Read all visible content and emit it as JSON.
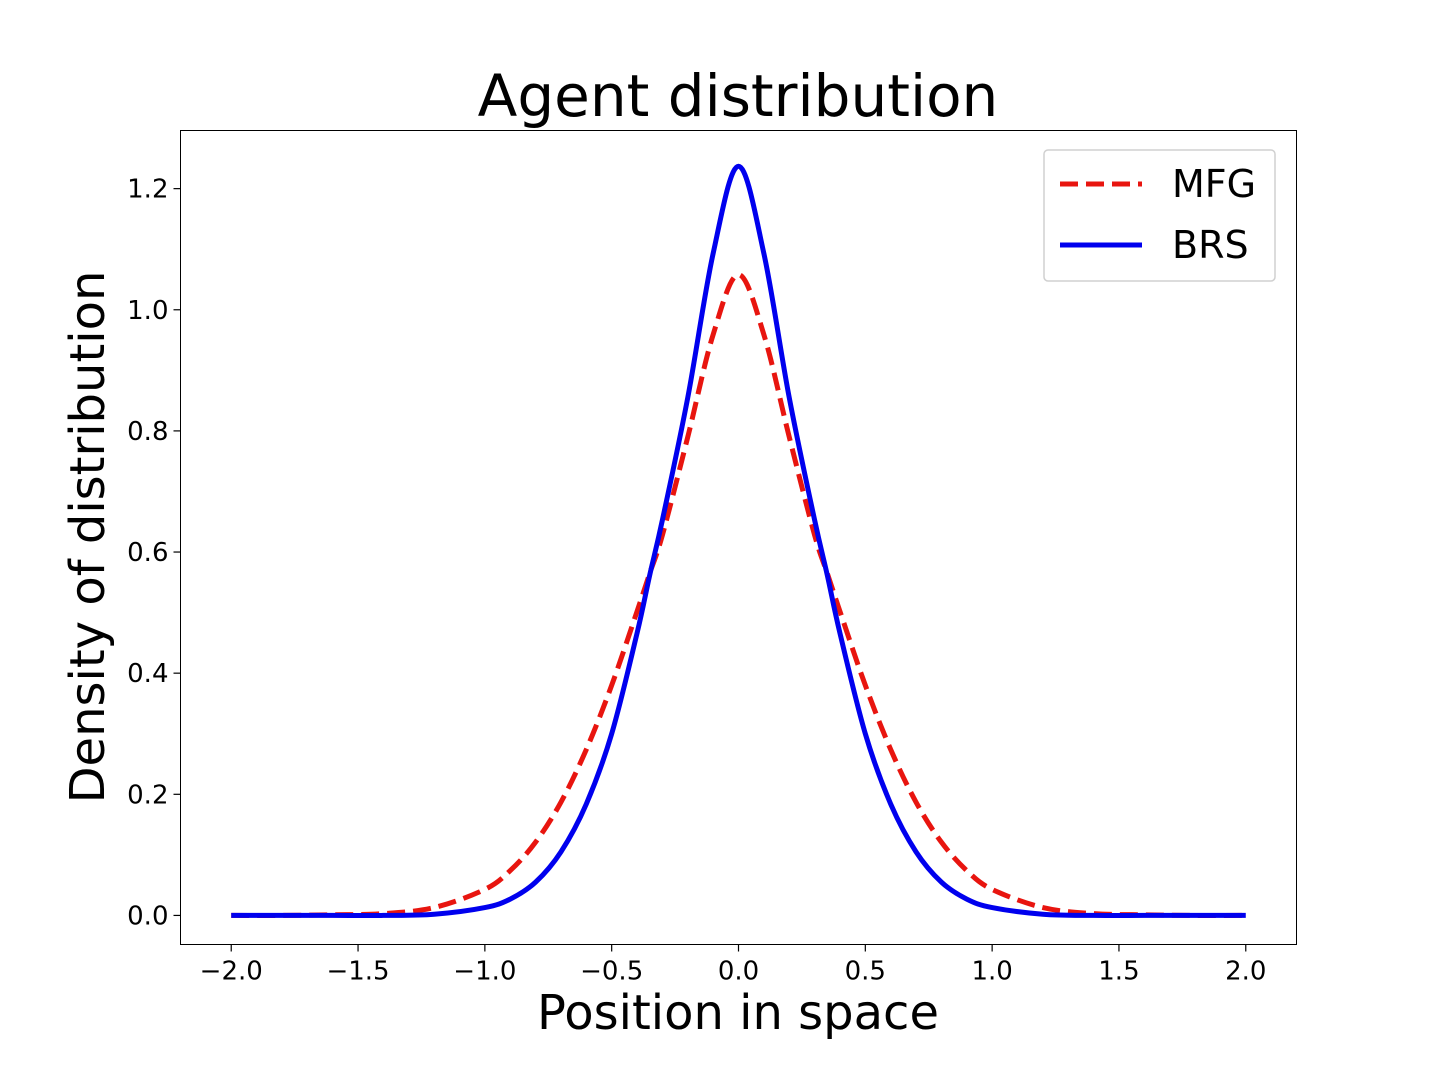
{
  "chart_data": {
    "type": "line",
    "title": "Agent distribution",
    "xlabel": "Position in space",
    "ylabel": "Density of distribution",
    "xlim": [
      -2.2,
      2.2
    ],
    "ylim": [
      -0.048,
      1.296
    ],
    "xticks": [
      -2.0,
      -1.5,
      -1.0,
      -0.5,
      0.0,
      0.5,
      1.0,
      1.5,
      2.0
    ],
    "xtick_labels": [
      "−2.0",
      "−1.5",
      "−1.0",
      "−0.5",
      "0.0",
      "0.5",
      "1.0",
      "1.5",
      "2.0"
    ],
    "yticks": [
      0.0,
      0.2,
      0.4,
      0.6,
      0.8,
      1.0,
      1.2
    ],
    "ytick_labels": [
      "0.0",
      "0.2",
      "0.4",
      "0.6",
      "0.8",
      "1.0",
      "1.2"
    ],
    "grid": false,
    "legend_position": "top-right",
    "x": [
      -2.0,
      -1.8,
      -1.6,
      -1.4,
      -1.2,
      -1.0,
      -0.9,
      -0.8,
      -0.7,
      -0.6,
      -0.5,
      -0.4,
      -0.35,
      -0.3,
      -0.2,
      -0.1,
      0.0,
      0.1,
      0.2,
      0.3,
      0.35,
      0.4,
      0.5,
      0.6,
      0.7,
      0.8,
      0.9,
      1.0,
      1.2,
      1.4,
      1.6,
      1.8,
      2.0
    ],
    "series": [
      {
        "name": "MFG",
        "color": "#e8150f",
        "style": "dashed",
        "values": [
          0.0,
          0.0,
          0.001,
          0.003,
          0.013,
          0.043,
          0.074,
          0.121,
          0.187,
          0.274,
          0.38,
          0.502,
          0.565,
          0.628,
          0.79,
          0.959,
          1.058,
          0.959,
          0.79,
          0.628,
          0.565,
          0.502,
          0.38,
          0.274,
          0.187,
          0.121,
          0.074,
          0.043,
          0.013,
          0.003,
          0.001,
          0.0,
          0.0
        ]
      },
      {
        "name": "BRS",
        "color": "#0000ee",
        "style": "solid",
        "values": [
          0.0,
          0.0,
          0.0,
          0.0,
          0.002,
          0.013,
          0.027,
          0.055,
          0.105,
          0.184,
          0.3,
          0.466,
          0.562,
          0.653,
          0.855,
          1.093,
          1.237,
          1.093,
          0.855,
          0.653,
          0.562,
          0.466,
          0.3,
          0.184,
          0.105,
          0.055,
          0.027,
          0.013,
          0.002,
          0.0,
          0.0,
          0.0,
          0.0
        ]
      }
    ]
  }
}
